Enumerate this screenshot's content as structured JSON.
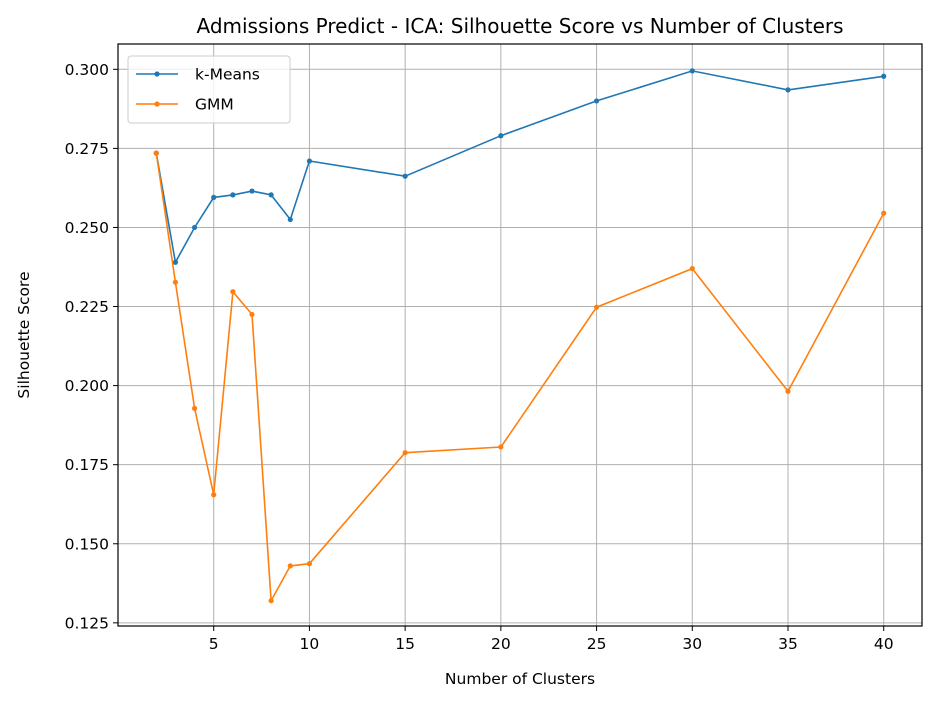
{
  "chart_data": {
    "type": "line",
    "title": "Admissions Predict - ICA: Silhouette Score vs Number of Clusters",
    "xlabel": "Number of Clusters",
    "ylabel": "Silhouette Score",
    "xlim": [
      0,
      42
    ],
    "ylim": [
      0.124,
      0.308
    ],
    "xticks": [
      5,
      10,
      15,
      20,
      25,
      30,
      35,
      40
    ],
    "xtick_labels": [
      "5",
      "10",
      "15",
      "20",
      "25",
      "30",
      "35",
      "40"
    ],
    "yticks": [
      0.125,
      0.15,
      0.175,
      0.2,
      0.225,
      0.25,
      0.275,
      0.3
    ],
    "ytick_labels": [
      "0.125",
      "0.150",
      "0.175",
      "0.200",
      "0.225",
      "0.250",
      "0.275",
      "0.300"
    ],
    "grid": true,
    "legend_position": "top-left",
    "x": [
      2,
      3,
      4,
      5,
      6,
      7,
      8,
      9,
      10,
      15,
      20,
      25,
      30,
      35,
      40
    ],
    "series": [
      {
        "name": "k-Means",
        "color": "#1f77b4",
        "values": [
          0.2735,
          0.239,
          0.25,
          0.2595,
          0.2603,
          0.2615,
          0.2603,
          0.2525,
          0.271,
          0.2662,
          0.279,
          0.29,
          0.2995,
          0.2935,
          0.2978
        ]
      },
      {
        "name": "GMM",
        "color": "#ff7f0e",
        "values": [
          0.2735,
          0.2327,
          0.1928,
          0.1655,
          0.2297,
          0.2225,
          0.132,
          0.143,
          0.1437,
          0.1788,
          0.1806,
          0.2248,
          0.237,
          0.1982,
          0.2545
        ]
      }
    ]
  }
}
